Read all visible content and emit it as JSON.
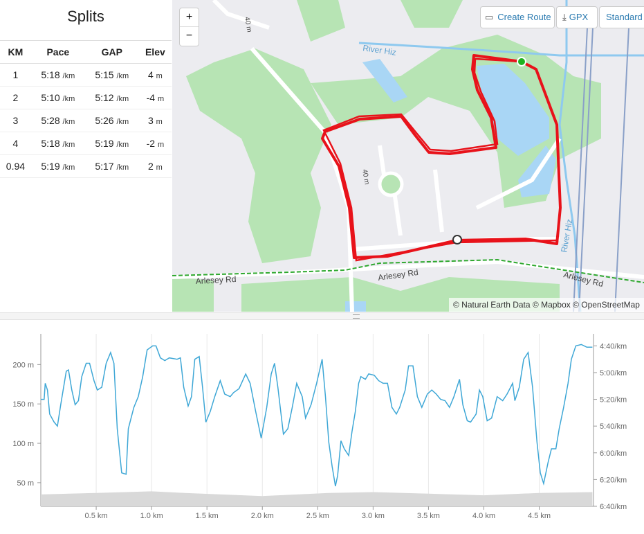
{
  "splits": {
    "title": "Splits",
    "headers": [
      "KM",
      "Pace",
      "GAP",
      "Elev"
    ],
    "rows": [
      [
        "1",
        "5:18",
        "/km",
        "5:15",
        "/km",
        "4",
        "m"
      ],
      [
        "2",
        "5:10",
        "/km",
        "5:12",
        "/km",
        "-4",
        "m"
      ],
      [
        "3",
        "5:28",
        "/km",
        "5:26",
        "/km",
        "3",
        "m"
      ],
      [
        "4",
        "5:18",
        "/km",
        "5:19",
        "/km",
        "-2",
        "m"
      ],
      [
        "0.94",
        "5:19",
        "/km",
        "5:17",
        "/km",
        "2",
        "m"
      ]
    ]
  },
  "map": {
    "zoom_in": "+",
    "zoom_out": "−",
    "buttons": [
      "Create Route",
      "GPX",
      "Standard M"
    ],
    "labels": [
      "River Hiz",
      "River Hiz",
      "Arlesey Rd",
      "Arlesey Rd",
      "Arlesey Rd",
      "40 m",
      "40 m"
    ],
    "attribution": "© Natural Earth Data © Mapbox © OpenStreetMap"
  },
  "chart_data": {
    "type": "line",
    "x": [
      0,
      0.03,
      0.04,
      0.06,
      0.08,
      0.12,
      0.15,
      0.18,
      0.23,
      0.25,
      0.28,
      0.31,
      0.34,
      0.37,
      0.41,
      0.44,
      0.48,
      0.51,
      0.55,
      0.59,
      0.63,
      0.66,
      0.69,
      0.73,
      0.77,
      0.79,
      0.84,
      0.88,
      0.92,
      0.96,
      1.01,
      1.04,
      1.08,
      1.12,
      1.16,
      1.23,
      1.26,
      1.29,
      1.33,
      1.36,
      1.39,
      1.43,
      1.46,
      1.49,
      1.53,
      1.57,
      1.62,
      1.66,
      1.71,
      1.74,
      1.79,
      1.85,
      1.89,
      1.94,
      1.99,
      2.04,
      2.08,
      2.11,
      2.14,
      2.19,
      2.23,
      2.27,
      2.31,
      2.36,
      2.39,
      2.44,
      2.49,
      2.54,
      2.57,
      2.6,
      2.63,
      2.66,
      2.68,
      2.71,
      2.74,
      2.78,
      2.81,
      2.84,
      2.87,
      2.89,
      2.93,
      2.96,
      3.01,
      3.05,
      3.09,
      3.13,
      3.17,
      3.21,
      3.24,
      3.29,
      3.32,
      3.36,
      3.4,
      3.44,
      3.49,
      3.53,
      3.57,
      3.61,
      3.65,
      3.69,
      3.73,
      3.78,
      3.81,
      3.85,
      3.88,
      3.93,
      3.96,
      3.99,
      4.03,
      4.07,
      4.12,
      4.17,
      4.21,
      4.26,
      4.28,
      4.32,
      4.36,
      4.4,
      4.44,
      4.48,
      4.51,
      4.54,
      4.58,
      4.61,
      4.65,
      4.68,
      4.72,
      4.76,
      4.79,
      4.83,
      4.88,
      4.93,
      4.98
    ],
    "series": [
      {
        "color": "#3ea7d6",
        "axis": "y2",
        "values": [
          320,
          320,
          308,
          313,
          331,
          337,
          340,
          324,
          299,
          298,
          313,
          324,
          321,
          303,
          293,
          293,
          306,
          313,
          311,
          293,
          285,
          293,
          342,
          375,
          376,
          342,
          326,
          318,
          303,
          283,
          280,
          280,
          289,
          291,
          289,
          290,
          289,
          311,
          325,
          318,
          290,
          288,
          311,
          337,
          329,
          318,
          306,
          316,
          318,
          315,
          312,
          301,
          308,
          329,
          349,
          326,
          301,
          293,
          311,
          346,
          342,
          326,
          308,
          318,
          334,
          324,
          308,
          290,
          318,
          352,
          370,
          385,
          377,
          351,
          357,
          362,
          344,
          329,
          308,
          303,
          305,
          301,
          302,
          306,
          308,
          308,
          326,
          331,
          326,
          313,
          295,
          295,
          318,
          326,
          316,
          313,
          316,
          320,
          321,
          326,
          318,
          305,
          324,
          336,
          337,
          331,
          313,
          318,
          336,
          334,
          318,
          321,
          316,
          308,
          321,
          311,
          290,
          285,
          311,
          352,
          375,
          383,
          367,
          357,
          357,
          342,
          326,
          308,
          290,
          280,
          279,
          281,
          281
        ]
      },
      {
        "color": "#d9d9d9",
        "area": true,
        "x": [
          0,
          0.5,
          1.0,
          1.3,
          2.0,
          2.6,
          3.0,
          3.5,
          4.0,
          4.5,
          4.98
        ],
        "values": [
          35,
          37,
          39,
          37,
          33,
          37,
          38,
          36,
          34,
          37,
          38
        ]
      }
    ],
    "xlim": [
      0,
      4.99
    ],
    "ylim": [
      20,
      239
    ],
    "y2lim": [
      400,
      271
    ],
    "xticks": [
      {
        "value": 0.5,
        "label": "0.5 km"
      },
      {
        "value": 1,
        "label": "1.0 km"
      },
      {
        "value": 1.5,
        "label": "1.5 km"
      },
      {
        "value": 2,
        "label": "2.0 km"
      },
      {
        "value": 2.5,
        "label": "2.5 km"
      },
      {
        "value": 3,
        "label": "3.0 km"
      },
      {
        "value": 3.5,
        "label": "3.5 km"
      },
      {
        "value": 4,
        "label": "4.0 km"
      },
      {
        "value": 4.5,
        "label": "4.5 km"
      }
    ],
    "yticks": [
      {
        "value": 50,
        "label": "50 m"
      },
      {
        "value": 100,
        "label": "100 m"
      },
      {
        "value": 150,
        "label": "150 m"
      },
      {
        "value": 200,
        "label": "200 m"
      }
    ],
    "y2ticks": [
      {
        "value": 280,
        "label": "4:40/km"
      },
      {
        "value": 300,
        "label": "5:00/km"
      },
      {
        "value": 320,
        "label": "5:20/km"
      },
      {
        "value": 340,
        "label": "5:40/km"
      },
      {
        "value": 360,
        "label": "6:00/km"
      },
      {
        "value": 380,
        "label": "6:20/km"
      },
      {
        "value": 400,
        "label": "6:40/km"
      }
    ],
    "grid": true
  }
}
